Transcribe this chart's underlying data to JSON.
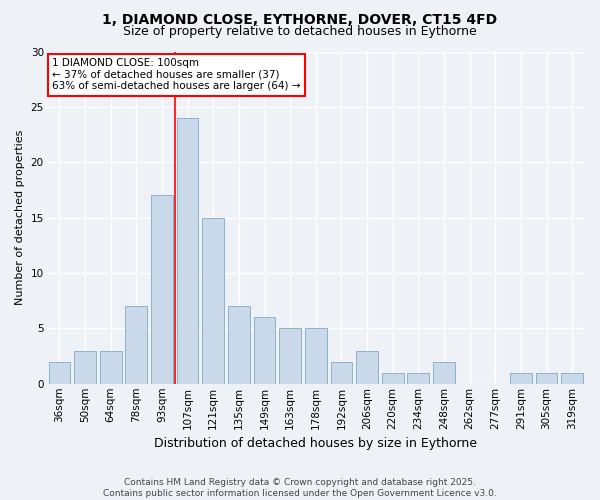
{
  "title": "1, DIAMOND CLOSE, EYTHORNE, DOVER, CT15 4FD",
  "subtitle": "Size of property relative to detached houses in Eythorne",
  "xlabel": "Distribution of detached houses by size in Eythorne",
  "ylabel": "Number of detached properties",
  "categories": [
    "36sqm",
    "50sqm",
    "64sqm",
    "78sqm",
    "93sqm",
    "107sqm",
    "121sqm",
    "135sqm",
    "149sqm",
    "163sqm",
    "178sqm",
    "192sqm",
    "206sqm",
    "220sqm",
    "234sqm",
    "248sqm",
    "262sqm",
    "277sqm",
    "291sqm",
    "305sqm",
    "319sqm"
  ],
  "values": [
    2,
    3,
    3,
    7,
    17,
    24,
    15,
    7,
    6,
    5,
    5,
    2,
    3,
    1,
    1,
    2,
    0,
    0,
    1,
    1,
    1
  ],
  "bar_color": "#c9d9ea",
  "bar_edgecolor": "#7eaacb",
  "vline_color": "red",
  "vline_pos": 4.5,
  "annotation_text": "1 DIAMOND CLOSE: 100sqm\n← 37% of detached houses are smaller (37)\n63% of semi-detached houses are larger (64) →",
  "annotation_box_facecolor": "white",
  "annotation_box_edgecolor": "red",
  "ylim": [
    0,
    30
  ],
  "yticks": [
    0,
    5,
    10,
    15,
    20,
    25,
    30
  ],
  "bg_color": "#eef2f7",
  "grid_color": "white",
  "footnote": "Contains HM Land Registry data © Crown copyright and database right 2025.\nContains public sector information licensed under the Open Government Licence v3.0.",
  "title_fontsize": 10,
  "subtitle_fontsize": 9,
  "xlabel_fontsize": 9,
  "ylabel_fontsize": 8,
  "tick_fontsize": 7.5,
  "annotation_fontsize": 7.5,
  "footnote_fontsize": 6.5
}
